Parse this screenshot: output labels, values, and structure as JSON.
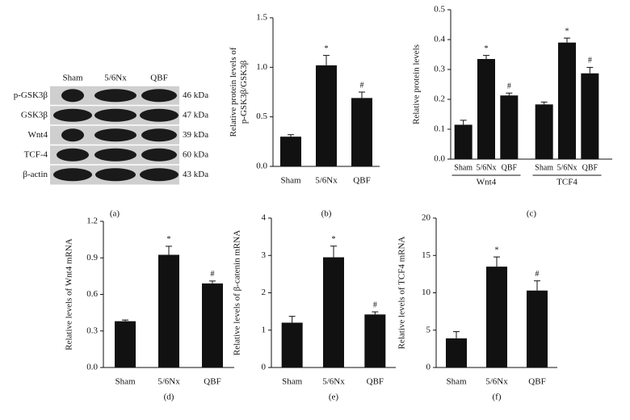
{
  "blot": {
    "lanes": [
      "Sham",
      "5/6Nx",
      "QBF"
    ],
    "rows": [
      {
        "label": "p-GSK3β",
        "kda": "46 kDa"
      },
      {
        "label": "GSK3β",
        "kda": "47 kDa"
      },
      {
        "label": "Wnt4",
        "kda": "39 kDa"
      },
      {
        "label": "TCF-4",
        "kda": "60 kDa"
      },
      {
        "label": "β-actin",
        "kda": "43 kDa"
      }
    ],
    "panel_label": "(a)"
  },
  "chart_data": [
    {
      "type": "bar",
      "panel_label": "(b)",
      "ylabel": [
        "Relative protein levels of",
        "p-GSK3β/GSK3β"
      ],
      "categories": [
        "Sham",
        "5/6Nx",
        "QBF"
      ],
      "values": [
        0.3,
        1.02,
        0.69
      ],
      "errors": [
        0.02,
        0.1,
        0.06
      ],
      "annotations": [
        null,
        "*",
        "#"
      ],
      "color": "#111111",
      "ylim": [
        0,
        1.5
      ],
      "yticks": [
        {
          "value": 0,
          "label": "0.0"
        },
        0.5,
        {
          "value": 1,
          "label": "1.0"
        },
        1.5
      ]
    },
    {
      "type": "grouped_bar",
      "panel_label": "(c)",
      "ylabel": [
        "Relative protein levels"
      ],
      "categories": [
        "Sham",
        "5/6Nx",
        "QBF"
      ],
      "color": "#111111",
      "groups": [
        {
          "label": "Wnt4",
          "values": [
            0.115,
            0.335,
            0.213
          ],
          "errors": [
            0.015,
            0.012,
            0.008
          ],
          "annotations": [
            null,
            "*",
            "#"
          ]
        },
        {
          "label": "TCF4",
          "values": [
            0.183,
            0.39,
            0.287
          ],
          "errors": [
            0.008,
            0.015,
            0.02
          ],
          "annotations": [
            null,
            "*",
            "#"
          ]
        }
      ],
      "ylim": [
        0,
        0.5
      ],
      "yticks": [
        {
          "value": 0,
          "label": "0.0"
        },
        0.1,
        0.2,
        0.3,
        0.4,
        0.5
      ]
    },
    {
      "type": "bar",
      "panel_label": "(d)",
      "ylabel": [
        "Relative levels of Wnt4 mRNA"
      ],
      "categories": [
        "Sham",
        "5/6Nx",
        "QBF"
      ],
      "values": [
        0.38,
        0.925,
        0.69
      ],
      "errors": [
        0.01,
        0.07,
        0.02
      ],
      "annotations": [
        null,
        "*",
        "#"
      ],
      "color": "#111111",
      "ylim": [
        0,
        1.2
      ],
      "yticks": [
        {
          "value": 0,
          "label": "0.0"
        },
        0.3,
        0.6,
        0.9,
        1.2
      ]
    },
    {
      "type": "bar",
      "panel_label": "(e)",
      "ylabel": [
        "Relative levels of β-catenin mRNA"
      ],
      "categories": [
        "Sham",
        "5/6Nx",
        "QBF"
      ],
      "values": [
        1.2,
        2.95,
        1.42
      ],
      "errors": [
        0.17,
        0.3,
        0.07
      ],
      "annotations": [
        null,
        "*",
        "#"
      ],
      "color": "#111111",
      "ylim": [
        0,
        4
      ],
      "yticks": [
        0,
        1,
        2,
        3,
        4
      ]
    },
    {
      "type": "bar",
      "panel_label": "(f)",
      "ylabel": [
        "Relative levels of TCF4 mRNA"
      ],
      "categories": [
        "Sham",
        "5/6Nx",
        "QBF"
      ],
      "values": [
        3.9,
        13.5,
        10.3
      ],
      "errors": [
        0.9,
        1.3,
        1.3
      ],
      "annotations": [
        null,
        "*",
        "#"
      ],
      "color": "#111111",
      "ylim": [
        0,
        20
      ],
      "yticks": [
        0,
        5,
        10,
        15,
        20
      ]
    }
  ]
}
